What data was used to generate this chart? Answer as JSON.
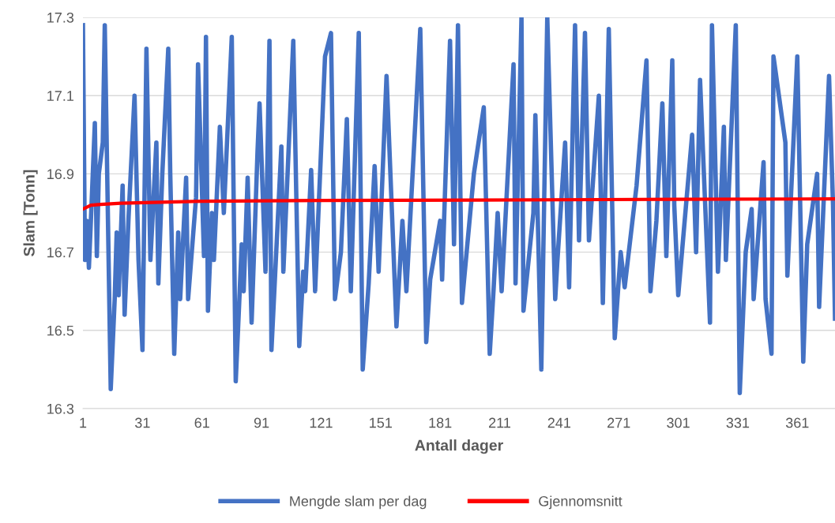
{
  "chart_data": {
    "type": "line",
    "xlabel": "Antall dager",
    "ylabel": "Slam [Tonn]",
    "xlim": [
      1,
      380
    ],
    "xticks": [
      1,
      31,
      61,
      91,
      121,
      151,
      181,
      211,
      241,
      271,
      301,
      331,
      361
    ],
    "ylim": [
      16.3,
      17.3
    ],
    "yticks": [
      16.3,
      16.5,
      16.7,
      16.9,
      17.1,
      17.3
    ],
    "grid": "y",
    "legend": "bottom",
    "marker": "none",
    "line_style": "solid",
    "series": [
      {
        "name": "Mengde slam per dag",
        "color": "#4472c4",
        "x": [
          1,
          2,
          3,
          4,
          5,
          7,
          8,
          9,
          11,
          12,
          15,
          17,
          18,
          19,
          21,
          22,
          24,
          27,
          29,
          31,
          33,
          35,
          38,
          39,
          41,
          44,
          45,
          47,
          49,
          50,
          53,
          54,
          58,
          59,
          62,
          63,
          64,
          66,
          67,
          70,
          72,
          76,
          78,
          80,
          81,
          82,
          84,
          86,
          89,
          90,
          93,
          95,
          96,
          101,
          102,
          107,
          110,
          112,
          113,
          116,
          118,
          123,
          126,
          128,
          131,
          134,
          136,
          140,
          142,
          145,
          148,
          150,
          154,
          159,
          162,
          164,
          171,
          174,
          176,
          181,
          182,
          186,
          188,
          190,
          192,
          198,
          203,
          206,
          208,
          210,
          212,
          218,
          219,
          222,
          223,
          228,
          229,
          232,
          235,
          239,
          240,
          244,
          246,
          249,
          251,
          254,
          256,
          261,
          263,
          266,
          269,
          272,
          274,
          280,
          285,
          287,
          290,
          293,
          295,
          298,
          299,
          301,
          308,
          310,
          312,
          317,
          318,
          321,
          324,
          325,
          330,
          332,
          335,
          338,
          339,
          344,
          345,
          348,
          349,
          355,
          356,
          361,
          364,
          366,
          371,
          372,
          377,
          379,
          380
        ],
        "values": [
          17.28,
          16.68,
          16.78,
          16.66,
          16.78,
          17.03,
          16.69,
          16.9,
          16.98,
          17.28,
          16.35,
          16.58,
          16.75,
          16.59,
          16.87,
          16.54,
          16.79,
          17.1,
          16.68,
          16.45,
          17.22,
          16.68,
          16.98,
          16.62,
          16.9,
          17.22,
          16.9,
          16.44,
          16.75,
          16.58,
          16.89,
          16.58,
          16.84,
          17.18,
          16.69,
          17.25,
          16.55,
          16.8,
          16.68,
          17.02,
          16.8,
          17.25,
          16.37,
          16.6,
          16.72,
          16.6,
          16.89,
          16.52,
          16.96,
          17.08,
          16.65,
          17.24,
          16.45,
          16.97,
          16.65,
          17.24,
          16.46,
          16.65,
          16.6,
          16.91,
          16.6,
          17.2,
          17.26,
          16.58,
          16.7,
          17.04,
          16.6,
          17.26,
          16.4,
          16.62,
          16.92,
          16.65,
          17.15,
          16.51,
          16.78,
          16.6,
          17.27,
          16.47,
          16.63,
          16.78,
          16.63,
          17.24,
          16.72,
          17.28,
          16.57,
          16.9,
          17.07,
          16.44,
          16.61,
          16.8,
          16.6,
          17.18,
          16.62,
          17.3,
          16.55,
          16.8,
          17.05,
          16.4,
          17.3,
          16.58,
          16.67,
          16.98,
          16.61,
          17.28,
          16.73,
          17.26,
          16.73,
          17.1,
          16.57,
          17.27,
          16.48,
          16.7,
          16.61,
          16.87,
          17.19,
          16.6,
          16.78,
          17.08,
          16.69,
          17.19,
          16.82,
          16.59,
          17.0,
          16.7,
          17.14,
          16.52,
          17.28,
          16.65,
          17.02,
          16.68,
          17.28,
          16.34,
          16.7,
          16.81,
          16.58,
          16.93,
          16.58,
          16.44,
          17.2,
          16.98,
          16.64,
          17.2,
          16.42,
          16.72,
          16.9,
          16.56,
          17.15,
          16.82,
          16.53
        ]
      },
      {
        "name": "Gjennomsnitt",
        "color": "#ff0000",
        "x": [
          1,
          3,
          5,
          10,
          20,
          60,
          120,
          200,
          300,
          380
        ],
        "values": [
          16.81,
          16.815,
          16.82,
          16.822,
          16.825,
          16.83,
          16.832,
          16.833,
          16.835,
          16.836
        ]
      }
    ]
  }
}
